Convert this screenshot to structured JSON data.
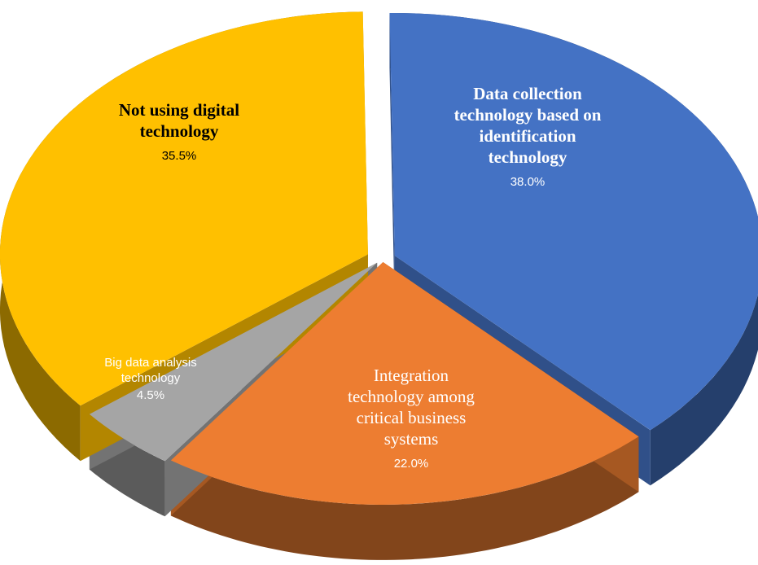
{
  "chart_data": {
    "type": "pie",
    "title": "",
    "slices": [
      {
        "category": "Data collection technology based on identification technology",
        "label_lines": [
          "Data collection",
          "technology based on",
          "identification",
          "technology"
        ],
        "value": 38.0,
        "value_label": "38.0%",
        "color": "#4472C4",
        "label_color": "#ffffff",
        "bold": true
      },
      {
        "category": "Integration technology among critical business systems",
        "label_lines": [
          "Integration",
          "technology among",
          "critical business",
          "systems"
        ],
        "value": 22.0,
        "value_label": "22.0%",
        "color": "#ED7D31",
        "label_color": "#ffffff",
        "bold": false
      },
      {
        "category": "Big data analysis technology",
        "label_lines": [
          "Big data analysis",
          "technology"
        ],
        "value": 4.5,
        "value_label": "4.5%",
        "color": "#A5A5A5",
        "label_color": "#ffffff",
        "bold": false
      },
      {
        "category": "Not using digital technology",
        "label_lines": [
          "Not using digital",
          "technology"
        ],
        "value": 35.5,
        "value_label": "35.5%",
        "color": "#FFC000",
        "label_color": "#000000",
        "bold": true
      }
    ],
    "style": "3d-exploded"
  }
}
